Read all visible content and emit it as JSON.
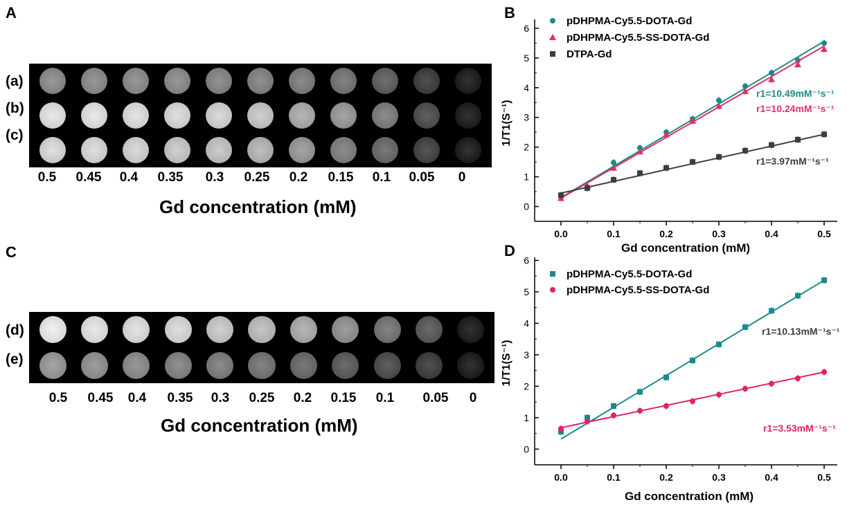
{
  "panels": {
    "A": {
      "letter": "A",
      "row_labels": [
        "(a)",
        "(b)",
        "(c)"
      ],
      "concentrations": [
        "0.5",
        "0.45",
        "0.4",
        "0.35",
        "0.3",
        "0.25",
        "0.2",
        "0.15",
        "0.1",
        "0.05",
        "0"
      ],
      "brightness": [
        [
          0.5,
          0.5,
          0.5,
          0.5,
          0.48,
          0.47,
          0.45,
          0.42,
          0.34,
          0.22,
          0.1
        ],
        [
          0.82,
          0.82,
          0.8,
          0.78,
          0.76,
          0.72,
          0.62,
          0.55,
          0.45,
          0.28,
          0.1
        ],
        [
          0.78,
          0.78,
          0.76,
          0.72,
          0.7,
          0.65,
          0.55,
          0.46,
          0.38,
          0.24,
          0.1
        ]
      ],
      "xlabel": "Gd concentration (mM)"
    },
    "C": {
      "letter": "C",
      "row_labels": [
        "(d)",
        "(e)"
      ],
      "concentrations": [
        "0.5",
        "0.45",
        "0.4",
        "0.35",
        "0.3",
        "0.25",
        "0.2",
        "0.15",
        "0.1",
        "0.05",
        "0"
      ],
      "brightness": [
        [
          0.85,
          0.82,
          0.8,
          0.78,
          0.72,
          0.68,
          0.62,
          0.52,
          0.42,
          0.32,
          0.1
        ],
        [
          0.55,
          0.52,
          0.5,
          0.47,
          0.45,
          0.42,
          0.38,
          0.33,
          0.28,
          0.22,
          0.1
        ]
      ],
      "xlabel": "Gd concentration (mM)"
    },
    "B": {
      "letter": "B"
    },
    "D": {
      "letter": "D"
    }
  },
  "chart_data": [
    {
      "id": "B",
      "type": "scatter",
      "xlabel": "Gd concentration (mM)",
      "ylabel": "1/T1(S⁻¹)",
      "xlim": [
        -0.05,
        0.525
      ],
      "ylim": [
        -0.5,
        6.3
      ],
      "xticks": [
        0.0,
        0.1,
        0.2,
        0.3,
        0.4,
        0.5
      ],
      "yticks": [
        0,
        1,
        2,
        3,
        4,
        5,
        6
      ],
      "legend_position": "top-left",
      "series": [
        {
          "name": "pDHPMA-Cy5.5-DOTA-Gd",
          "marker": "circle",
          "color": "#1a8a8a",
          "x": [
            0,
            0.05,
            0.1,
            0.15,
            0.2,
            0.25,
            0.3,
            0.35,
            0.4,
            0.45,
            0.5
          ],
          "y": [
            0.35,
            0.65,
            1.48,
            1.97,
            2.5,
            2.95,
            3.57,
            4.05,
            4.5,
            4.92,
            5.5
          ],
          "fit": [
            0.3,
            5.56
          ],
          "annotation": "r1=10.49mM⁻¹s⁻¹"
        },
        {
          "name": "pDHPMA-Cy5.5-SS-DOTA-Gd",
          "marker": "triangle",
          "color": "#e0306a",
          "x": [
            0,
            0.05,
            0.1,
            0.15,
            0.2,
            0.25,
            0.3,
            0.35,
            0.4,
            0.45,
            0.5
          ],
          "y": [
            0.28,
            0.7,
            1.3,
            1.85,
            2.42,
            2.88,
            3.38,
            3.88,
            4.28,
            4.78,
            5.3
          ],
          "fit": [
            0.28,
            5.4
          ],
          "annotation": "r1=10.24mM⁻¹s⁻¹"
        },
        {
          "name": "DTPA-Gd",
          "marker": "square",
          "color": "#3d3d3d",
          "x": [
            0,
            0.05,
            0.1,
            0.15,
            0.2,
            0.25,
            0.3,
            0.35,
            0.4,
            0.45,
            0.5
          ],
          "y": [
            0.38,
            0.62,
            0.9,
            1.12,
            1.3,
            1.5,
            1.67,
            1.88,
            2.07,
            2.25,
            2.43
          ],
          "fit": [
            0.45,
            2.43
          ],
          "annotation": "r1=3.97mM⁻¹s⁻¹"
        }
      ]
    },
    {
      "id": "D",
      "type": "scatter",
      "xlabel": "Gd concentration (mM)",
      "ylabel": "1/T1(S⁻¹)",
      "xlim": [
        -0.05,
        0.525
      ],
      "ylim": [
        -0.5,
        6.1
      ],
      "xticks": [
        0.0,
        0.1,
        0.2,
        0.3,
        0.4,
        0.5
      ],
      "yticks": [
        0,
        1,
        2,
        3,
        4,
        5,
        6
      ],
      "legend_position": "top-left",
      "series": [
        {
          "name": "pDHPMA-Cy5.5-DOTA-Gd",
          "marker": "square",
          "color": "#1a8a8a",
          "x": [
            0,
            0.05,
            0.1,
            0.15,
            0.2,
            0.25,
            0.3,
            0.35,
            0.4,
            0.45,
            0.5
          ],
          "y": [
            0.55,
            1.0,
            1.37,
            1.82,
            2.28,
            2.82,
            3.33,
            3.88,
            4.4,
            4.88,
            5.37
          ],
          "fit": [
            0.32,
            5.37
          ],
          "annotation": "r1=10.13mM⁻¹s⁻¹"
        },
        {
          "name": "pDHPMA-Cy5.5-SS-DOTA-Gd",
          "marker": "circle",
          "color": "#e0206a",
          "x": [
            0,
            0.05,
            0.1,
            0.15,
            0.2,
            0.25,
            0.3,
            0.35,
            0.4,
            0.45,
            0.5
          ],
          "y": [
            0.65,
            0.88,
            1.07,
            1.22,
            1.37,
            1.52,
            1.73,
            1.92,
            2.08,
            2.25,
            2.45
          ],
          "fit": [
            0.68,
            2.45
          ],
          "annotation": "r1=3.53mM⁻¹s⁻¹"
        }
      ]
    }
  ]
}
